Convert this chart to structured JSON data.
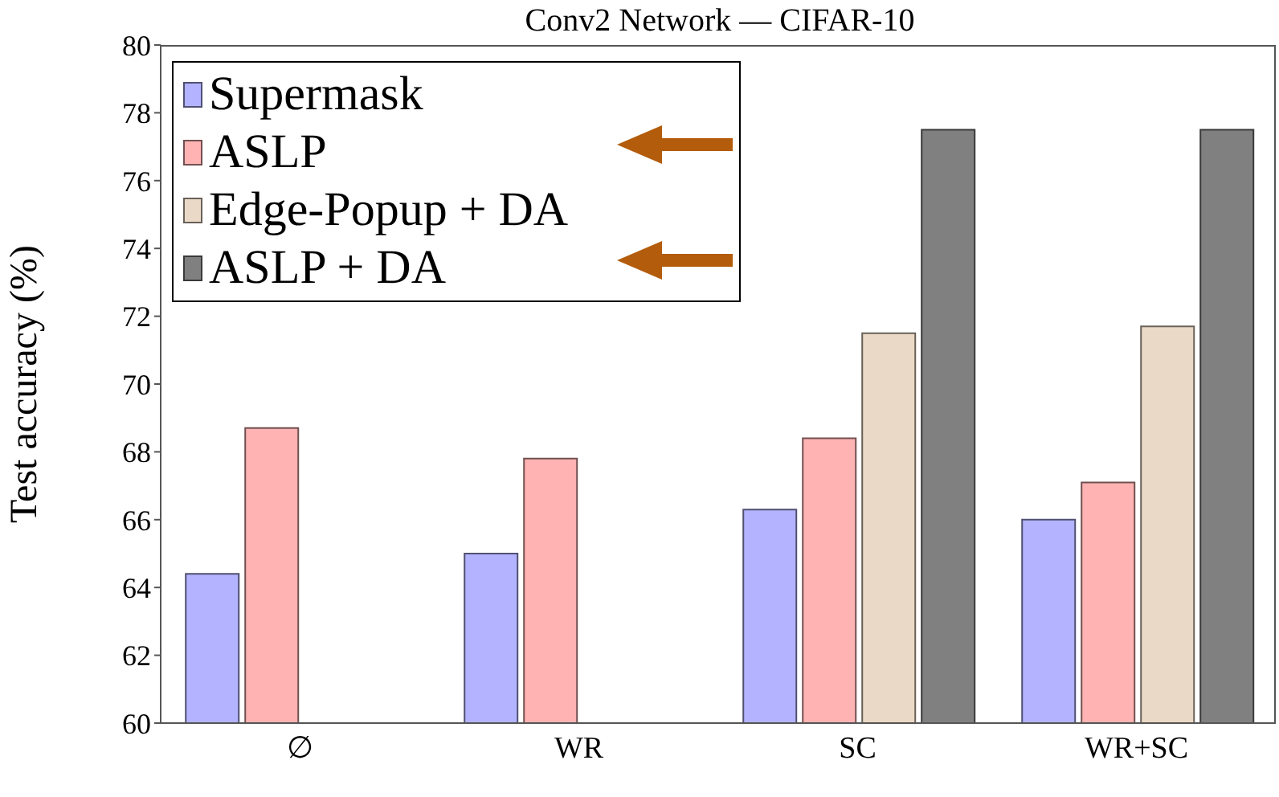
{
  "chart_data": {
    "type": "bar",
    "title": "Conv2 Network — CIFAR-10",
    "ylabel": "Test accuracy (%)",
    "categories": [
      "∅",
      "WR",
      "SC",
      "WR+SC"
    ],
    "series": [
      {
        "name": "Supermask",
        "color": "#b3b3ff",
        "values": [
          64.4,
          65.0,
          66.3,
          66.0
        ]
      },
      {
        "name": "ASLP",
        "color": "#ffb3b3",
        "values": [
          68.7,
          67.8,
          68.4,
          67.1
        ]
      },
      {
        "name": "Edge-Popup + DA",
        "color": "#ead9c6",
        "values": [
          null,
          null,
          71.5,
          71.7
        ]
      },
      {
        "name": "ASLP + DA",
        "color": "#808080",
        "values": [
          null,
          null,
          77.5,
          77.5
        ]
      }
    ],
    "ylim": [
      60,
      80
    ],
    "yticks": [
      60,
      62,
      64,
      66,
      68,
      70,
      72,
      74,
      76,
      78,
      80
    ],
    "grid": false,
    "legend": "top left"
  }
}
